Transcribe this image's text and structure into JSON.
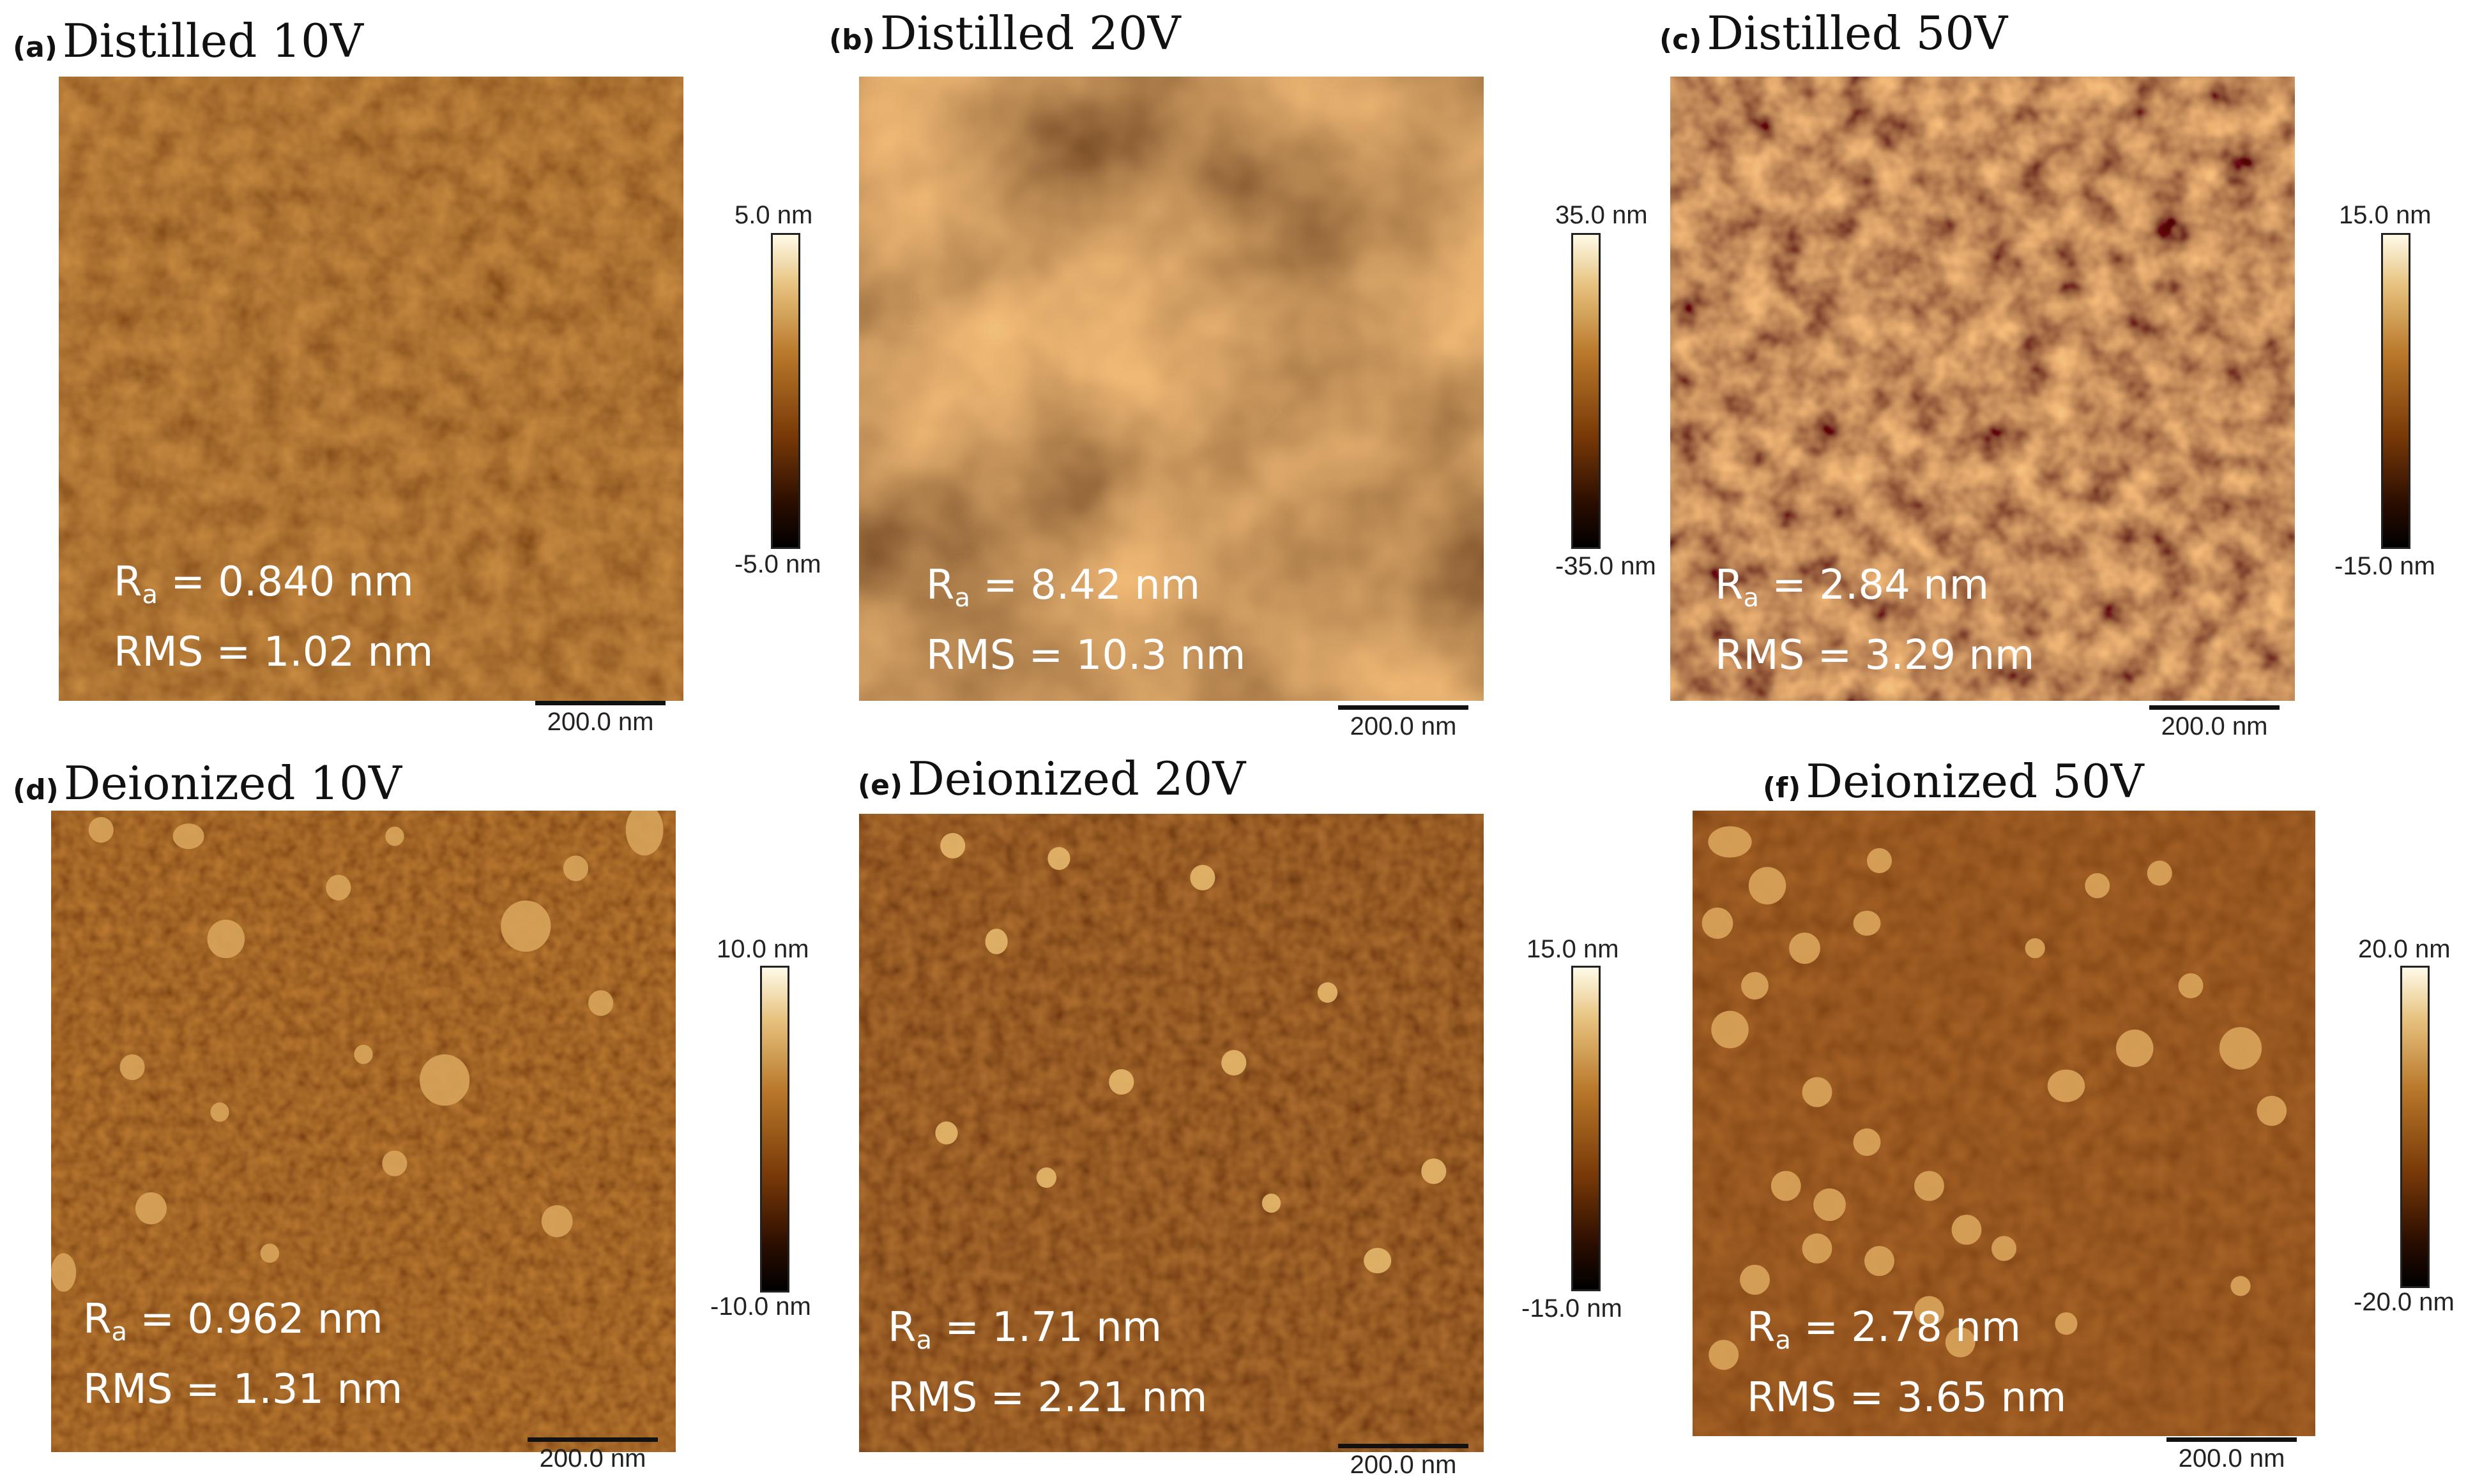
{
  "figure": {
    "panels": [
      {
        "letter": "(a)",
        "title": "Distilled 10V",
        "ra": "0.840 nm",
        "rms": "1.02 nm",
        "scale_max": "5.0 nm",
        "scale_min": "-5.0 nm",
        "scalebar": "200.0 nm"
      },
      {
        "letter": "(b)",
        "title": "Distilled 20V",
        "ra": "8.42 nm",
        "rms": "10.3 nm",
        "scale_max": "35.0 nm",
        "scale_min": "-35.0 nm",
        "scalebar": "200.0 nm"
      },
      {
        "letter": "(c)",
        "title": "Distilled 50V",
        "ra": "2.84 nm",
        "rms": "3.29 nm",
        "scale_max": "15.0 nm",
        "scale_min": "-15.0 nm",
        "scalebar": "200.0 nm"
      },
      {
        "letter": "(d)",
        "title": "Deionized 10V",
        "ra": "0.962 nm",
        "rms": "1.31 nm",
        "scale_max": "10.0 nm",
        "scale_min": "-10.0 nm",
        "scalebar": "200.0 nm"
      },
      {
        "letter": "(e)",
        "title": "Deionized 20V",
        "ra": "1.71 nm",
        "rms": "2.21 nm",
        "scale_max": "15.0 nm",
        "scale_min": "-15.0 nm",
        "scalebar": "200.0 nm"
      },
      {
        "letter": "(f)",
        "title": "Deionized 50V",
        "ra": "2.78 nm",
        "rms": "3.65 nm",
        "scale_max": "20.0 nm",
        "scale_min": "-20.0 nm",
        "scalebar": "200.0 nm"
      }
    ],
    "labels": {
      "ra_symbol": "R",
      "ra_sub": "a",
      "rms_symbol": "RMS",
      "equals": " = "
    },
    "colors": {
      "colormap_light": "#fffbe8",
      "colormap_mid": "#b9782a",
      "colormap_dark": "#000000",
      "annotation_text": "#ffffff"
    }
  }
}
